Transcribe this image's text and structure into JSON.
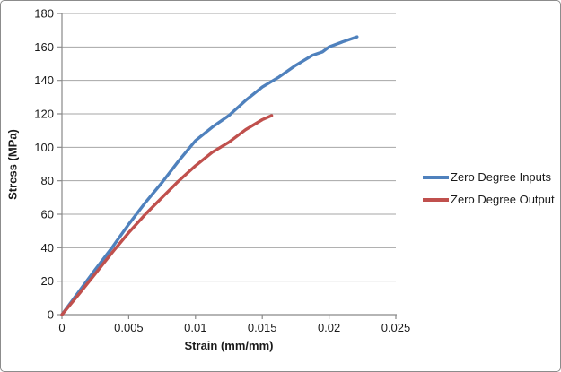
{
  "window": {
    "background": "#ffffff",
    "border_color": "#8c8c8c"
  },
  "chart_data": {
    "type": "line",
    "title": "",
    "xlabel": "Strain (mm/mm)",
    "ylabel": "Stress (MPa)",
    "xlim": [
      0,
      0.025
    ],
    "ylim": [
      0,
      180
    ],
    "x_ticks": [
      0,
      0.005,
      0.01,
      0.015,
      0.02,
      0.025
    ],
    "x_tick_labels": [
      "0",
      "0.005",
      "0.01",
      "0.015",
      "0.02",
      "0.025"
    ],
    "y_ticks": [
      0,
      20,
      40,
      60,
      80,
      100,
      120,
      140,
      160,
      180
    ],
    "y_tick_labels": [
      "0",
      "20",
      "40",
      "60",
      "80",
      "100",
      "120",
      "140",
      "160",
      "180"
    ],
    "grid": "horizontal",
    "legend_position": "right",
    "colors": {
      "gridline": "#a6a6a6",
      "axis": "#898989",
      "text": "#1a1a1a"
    },
    "series": [
      {
        "name": "Zero Degree Inputs",
        "color": "#4f81bd",
        "line_width": 3.4,
        "points": [
          [
            0,
            0
          ],
          [
            0.00125,
            13.5
          ],
          [
            0.0025,
            27
          ],
          [
            0.00375,
            40
          ],
          [
            0.005,
            54
          ],
          [
            0.00625,
            67
          ],
          [
            0.0075,
            79
          ],
          [
            0.00875,
            92
          ],
          [
            0.01,
            104
          ],
          [
            0.01125,
            112
          ],
          [
            0.0125,
            119
          ],
          [
            0.01375,
            128
          ],
          [
            0.015,
            136
          ],
          [
            0.01625,
            142
          ],
          [
            0.0175,
            149
          ],
          [
            0.01875,
            155
          ],
          [
            0.0195,
            157
          ],
          [
            0.02,
            160
          ],
          [
            0.021,
            163
          ],
          [
            0.0221,
            166
          ]
        ]
      },
      {
        "name": "Zero Degree Output",
        "color": "#c0504d",
        "line_width": 3.4,
        "points": [
          [
            0,
            0
          ],
          [
            0.00125,
            12
          ],
          [
            0.0025,
            24.5
          ],
          [
            0.00375,
            37
          ],
          [
            0.005,
            49
          ],
          [
            0.00625,
            60
          ],
          [
            0.0075,
            70
          ],
          [
            0.00875,
            80
          ],
          [
            0.01,
            89
          ],
          [
            0.01125,
            97
          ],
          [
            0.0125,
            103
          ],
          [
            0.01375,
            110.5
          ],
          [
            0.015,
            116.5
          ],
          [
            0.0157,
            119
          ]
        ]
      }
    ]
  }
}
